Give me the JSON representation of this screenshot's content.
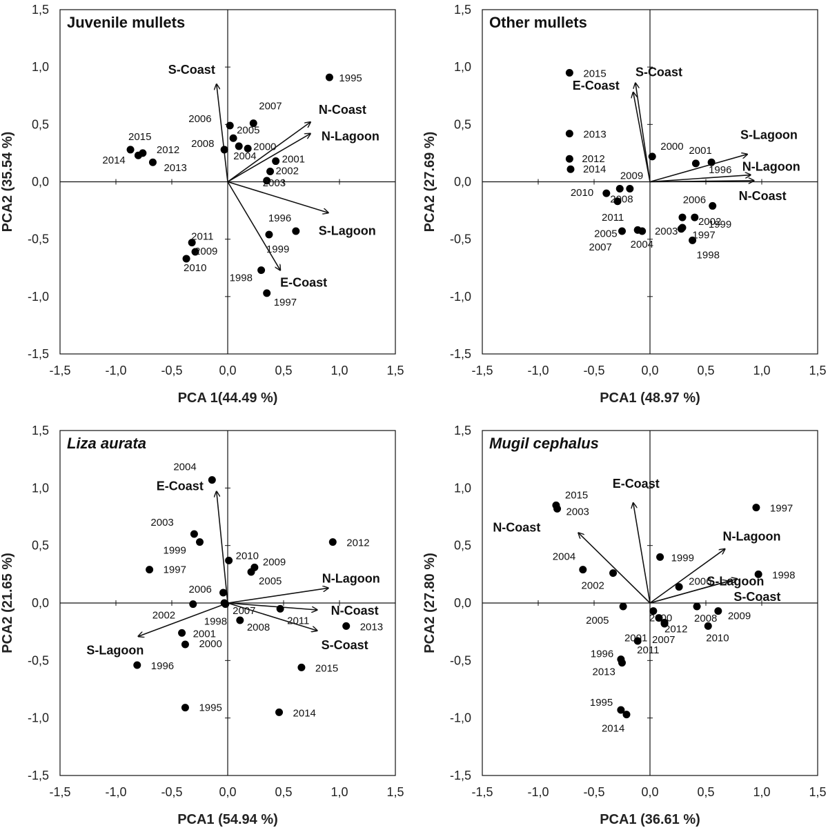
{
  "chart_data": [
    {
      "type": "scatter",
      "title": "Juvenile mullets",
      "title_italic": false,
      "xlabel": "PCA 1(44.49 %)",
      "ylabel": "PCA2 (35.54 %)",
      "xlim": [
        -1.5,
        1.5
      ],
      "ylim": [
        -1.5,
        1.5
      ],
      "ticks": [
        "-1,5",
        "-1,0",
        "-0,5",
        "0,0",
        "0,5",
        "1,0",
        "1,5"
      ],
      "points": [
        {
          "label": "1995",
          "x": 0.91,
          "y": 0.91
        },
        {
          "label": "2007",
          "x": 0.23,
          "y": 0.51
        },
        {
          "label": "2006",
          "x": 0.02,
          "y": 0.49
        },
        {
          "label": "2005",
          "x": 0.05,
          "y": 0.38
        },
        {
          "label": "2000",
          "x": 0.18,
          "y": 0.29
        },
        {
          "label": "2004",
          "x": 0.1,
          "y": 0.31
        },
        {
          "label": "2008",
          "x": -0.03,
          "y": 0.28
        },
        {
          "label": "2001",
          "x": 0.43,
          "y": 0.18
        },
        {
          "label": "2002",
          "x": 0.38,
          "y": 0.09
        },
        {
          "label": "2003",
          "x": 0.35,
          "y": 0.01
        },
        {
          "label": "2015",
          "x": -0.87,
          "y": 0.28
        },
        {
          "label": "2012",
          "x": -0.76,
          "y": 0.25
        },
        {
          "label": "2014",
          "x": -0.8,
          "y": 0.23
        },
        {
          "label": "2013",
          "x": -0.67,
          "y": 0.17
        },
        {
          "label": "1996",
          "x": 0.61,
          "y": -0.43
        },
        {
          "label": "1999",
          "x": 0.37,
          "y": -0.46
        },
        {
          "label": "2011",
          "x": -0.32,
          "y": -0.53
        },
        {
          "label": "2009",
          "x": -0.29,
          "y": -0.61
        },
        {
          "label": "2010",
          "x": -0.37,
          "y": -0.67
        },
        {
          "label": "1998",
          "x": 0.3,
          "y": -0.77
        },
        {
          "label": "1997",
          "x": 0.35,
          "y": -0.97
        }
      ],
      "vectors": [
        {
          "label": "S-Coast",
          "x": -0.1,
          "y": 0.85
        },
        {
          "label": "N-Coast",
          "x": 0.74,
          "y": 0.52
        },
        {
          "label": "N-Lagoon",
          "x": 0.74,
          "y": 0.42
        },
        {
          "label": "S-Lagoon",
          "x": 0.9,
          "y": -0.27
        },
        {
          "label": "E-Coast",
          "x": 0.47,
          "y": -0.77
        }
      ]
    },
    {
      "type": "scatter",
      "title": "Other mullets",
      "title_italic": false,
      "xlabel": "PCA1 (48.97 %)",
      "ylabel": "PCA2 (27.69 %)",
      "xlim": [
        -1.5,
        1.5
      ],
      "ylim": [
        -1.5,
        1.5
      ],
      "ticks": [
        "-1,5",
        "-1,0",
        "-0,5",
        "0,0",
        "0,5",
        "1,0",
        "1,5"
      ],
      "points": [
        {
          "label": "2015",
          "x": -0.72,
          "y": 0.95
        },
        {
          "label": "2013",
          "x": -0.72,
          "y": 0.42
        },
        {
          "label": "2012",
          "x": -0.72,
          "y": 0.2
        },
        {
          "label": "2014",
          "x": -0.71,
          "y": 0.11
        },
        {
          "label": "2000",
          "x": 0.02,
          "y": 0.22
        },
        {
          "label": "2001",
          "x": 0.41,
          "y": 0.16
        },
        {
          "label": "1996",
          "x": 0.55,
          "y": 0.17
        },
        {
          "label": "2009",
          "x": -0.18,
          "y": -0.06
        },
        {
          "label": "2010",
          "x": -0.39,
          "y": -0.1
        },
        {
          "label": "2008",
          "x": -0.27,
          "y": -0.06
        },
        {
          "label": "2011",
          "x": -0.29,
          "y": -0.17
        },
        {
          "label": "2006",
          "x": 0.56,
          "y": -0.21
        },
        {
          "label": "1999",
          "x": 0.4,
          "y": -0.31
        },
        {
          "label": "2002",
          "x": 0.29,
          "y": -0.31
        },
        {
          "label": "2003",
          "x": 0.29,
          "y": -0.4
        },
        {
          "label": "1997",
          "x": 0.28,
          "y": -0.41
        },
        {
          "label": "2005",
          "x": -0.11,
          "y": -0.42
        },
        {
          "label": "2004",
          "x": -0.07,
          "y": -0.43
        },
        {
          "label": "2007",
          "x": -0.25,
          "y": -0.43
        },
        {
          "label": "1998",
          "x": 0.38,
          "y": -0.51
        }
      ],
      "vectors": [
        {
          "label": "S-Coast",
          "x": -0.13,
          "y": 0.86
        },
        {
          "label": "E-Coast",
          "x": -0.15,
          "y": 0.78
        },
        {
          "label": "S-Lagoon",
          "x": 0.87,
          "y": 0.24
        },
        {
          "label": "N-Lagoon",
          "x": 0.9,
          "y": 0.06
        },
        {
          "label": "N-Coast",
          "x": 0.93,
          "y": 0.01
        }
      ]
    },
    {
      "type": "scatter",
      "title": "Liza aurata",
      "title_italic": true,
      "xlabel": "PCA1 (54.94 %)",
      "ylabel": "PCA2 (21.65 %)",
      "xlim": [
        -1.5,
        1.5
      ],
      "ylim": [
        -1.5,
        1.5
      ],
      "ticks": [
        "-1,5",
        "-1,0",
        "-0,5",
        "0,0",
        "0,5",
        "1,0",
        "1,5"
      ],
      "points": [
        {
          "label": "2004",
          "x": -0.14,
          "y": 1.07
        },
        {
          "label": "2012",
          "x": 0.94,
          "y": 0.53
        },
        {
          "label": "2003",
          "x": -0.3,
          "y": 0.6
        },
        {
          "label": "1999",
          "x": -0.25,
          "y": 0.53
        },
        {
          "label": "1997",
          "x": -0.7,
          "y": 0.29
        },
        {
          "label": "2010",
          "x": 0.01,
          "y": 0.37
        },
        {
          "label": "2009",
          "x": 0.24,
          "y": 0.31
        },
        {
          "label": "2005",
          "x": 0.21,
          "y": 0.27
        },
        {
          "label": "2006",
          "x": -0.04,
          "y": 0.09
        },
        {
          "label": "2007",
          "x": -0.03,
          "y": 0.0
        },
        {
          "label": "2002",
          "x": -0.31,
          "y": -0.01
        },
        {
          "label": "1998",
          "x": -0.02,
          "y": -0.01
        },
        {
          "label": "2011",
          "x": 0.47,
          "y": -0.05
        },
        {
          "label": "2008",
          "x": 0.11,
          "y": -0.15
        },
        {
          "label": "2013",
          "x": 1.06,
          "y": -0.2
        },
        {
          "label": "2001",
          "x": -0.41,
          "y": -0.26
        },
        {
          "label": "2000",
          "x": -0.38,
          "y": -0.36
        },
        {
          "label": "1996",
          "x": -0.81,
          "y": -0.54
        },
        {
          "label": "2015",
          "x": 0.66,
          "y": -0.56
        },
        {
          "label": "1995",
          "x": -0.38,
          "y": -0.91
        },
        {
          "label": "2014",
          "x": 0.46,
          "y": -0.95
        }
      ],
      "vectors": [
        {
          "label": "E-Coast",
          "x": -0.1,
          "y": 0.97
        },
        {
          "label": "N-Lagoon",
          "x": 0.9,
          "y": 0.13
        },
        {
          "label": "N-Coast",
          "x": 0.8,
          "y": -0.06
        },
        {
          "label": "S-Coast",
          "x": 0.8,
          "y": -0.24
        },
        {
          "label": "S-Lagoon",
          "x": -0.8,
          "y": -0.29
        }
      ]
    },
    {
      "type": "scatter",
      "title": "Mugil cephalus",
      "title_italic": true,
      "xlabel": "PCA1 (36.61 %)",
      "ylabel": "PCA2 (27.80 %)",
      "xlim": [
        -1.5,
        1.5
      ],
      "ylim": [
        -1.5,
        1.5
      ],
      "ticks": [
        "-1,5",
        "-1,0",
        "-0,5",
        "0,0",
        "0,5",
        "1,0",
        "1,5"
      ],
      "points": [
        {
          "label": "1997",
          "x": 0.95,
          "y": 0.83
        },
        {
          "label": "2015",
          "x": -0.84,
          "y": 0.85
        },
        {
          "label": "2003",
          "x": -0.83,
          "y": 0.82
        },
        {
          "label": "1999",
          "x": 0.09,
          "y": 0.4
        },
        {
          "label": "1998",
          "x": 0.97,
          "y": 0.25
        },
        {
          "label": "2004",
          "x": -0.6,
          "y": 0.29
        },
        {
          "label": "2002",
          "x": -0.33,
          "y": 0.26
        },
        {
          "label": "2006",
          "x": 0.26,
          "y": 0.14
        },
        {
          "label": "2008",
          "x": 0.42,
          "y": -0.03
        },
        {
          "label": "2009",
          "x": 0.61,
          "y": -0.07
        },
        {
          "label": "2005",
          "x": -0.24,
          "y": -0.03
        },
        {
          "label": "2000",
          "x": 0.03,
          "y": -0.07
        },
        {
          "label": "2001",
          "x": 0.08,
          "y": -0.13
        },
        {
          "label": "2012",
          "x": 0.13,
          "y": -0.17
        },
        {
          "label": "2010",
          "x": 0.52,
          "y": -0.2
        },
        {
          "label": "2007",
          "x": 0.13,
          "y": -0.18
        },
        {
          "label": "2011",
          "x": -0.11,
          "y": -0.33
        },
        {
          "label": "1996",
          "x": -0.26,
          "y": -0.49
        },
        {
          "label": "2013",
          "x": -0.25,
          "y": -0.52
        },
        {
          "label": "1995",
          "x": -0.26,
          "y": -0.93
        },
        {
          "label": "2014",
          "x": -0.21,
          "y": -0.97
        }
      ],
      "vectors": [
        {
          "label": "E-Coast",
          "x": -0.15,
          "y": 0.87
        },
        {
          "label": "N-Coast",
          "x": -0.64,
          "y": 0.61
        },
        {
          "label": "N-Lagoon",
          "x": 0.67,
          "y": 0.47
        },
        {
          "label": "S-Lagoon",
          "x": 0.7,
          "y": 0.19
        },
        {
          "label": "S-Coast",
          "x": 0.78,
          "y": 0.21
        }
      ]
    }
  ]
}
